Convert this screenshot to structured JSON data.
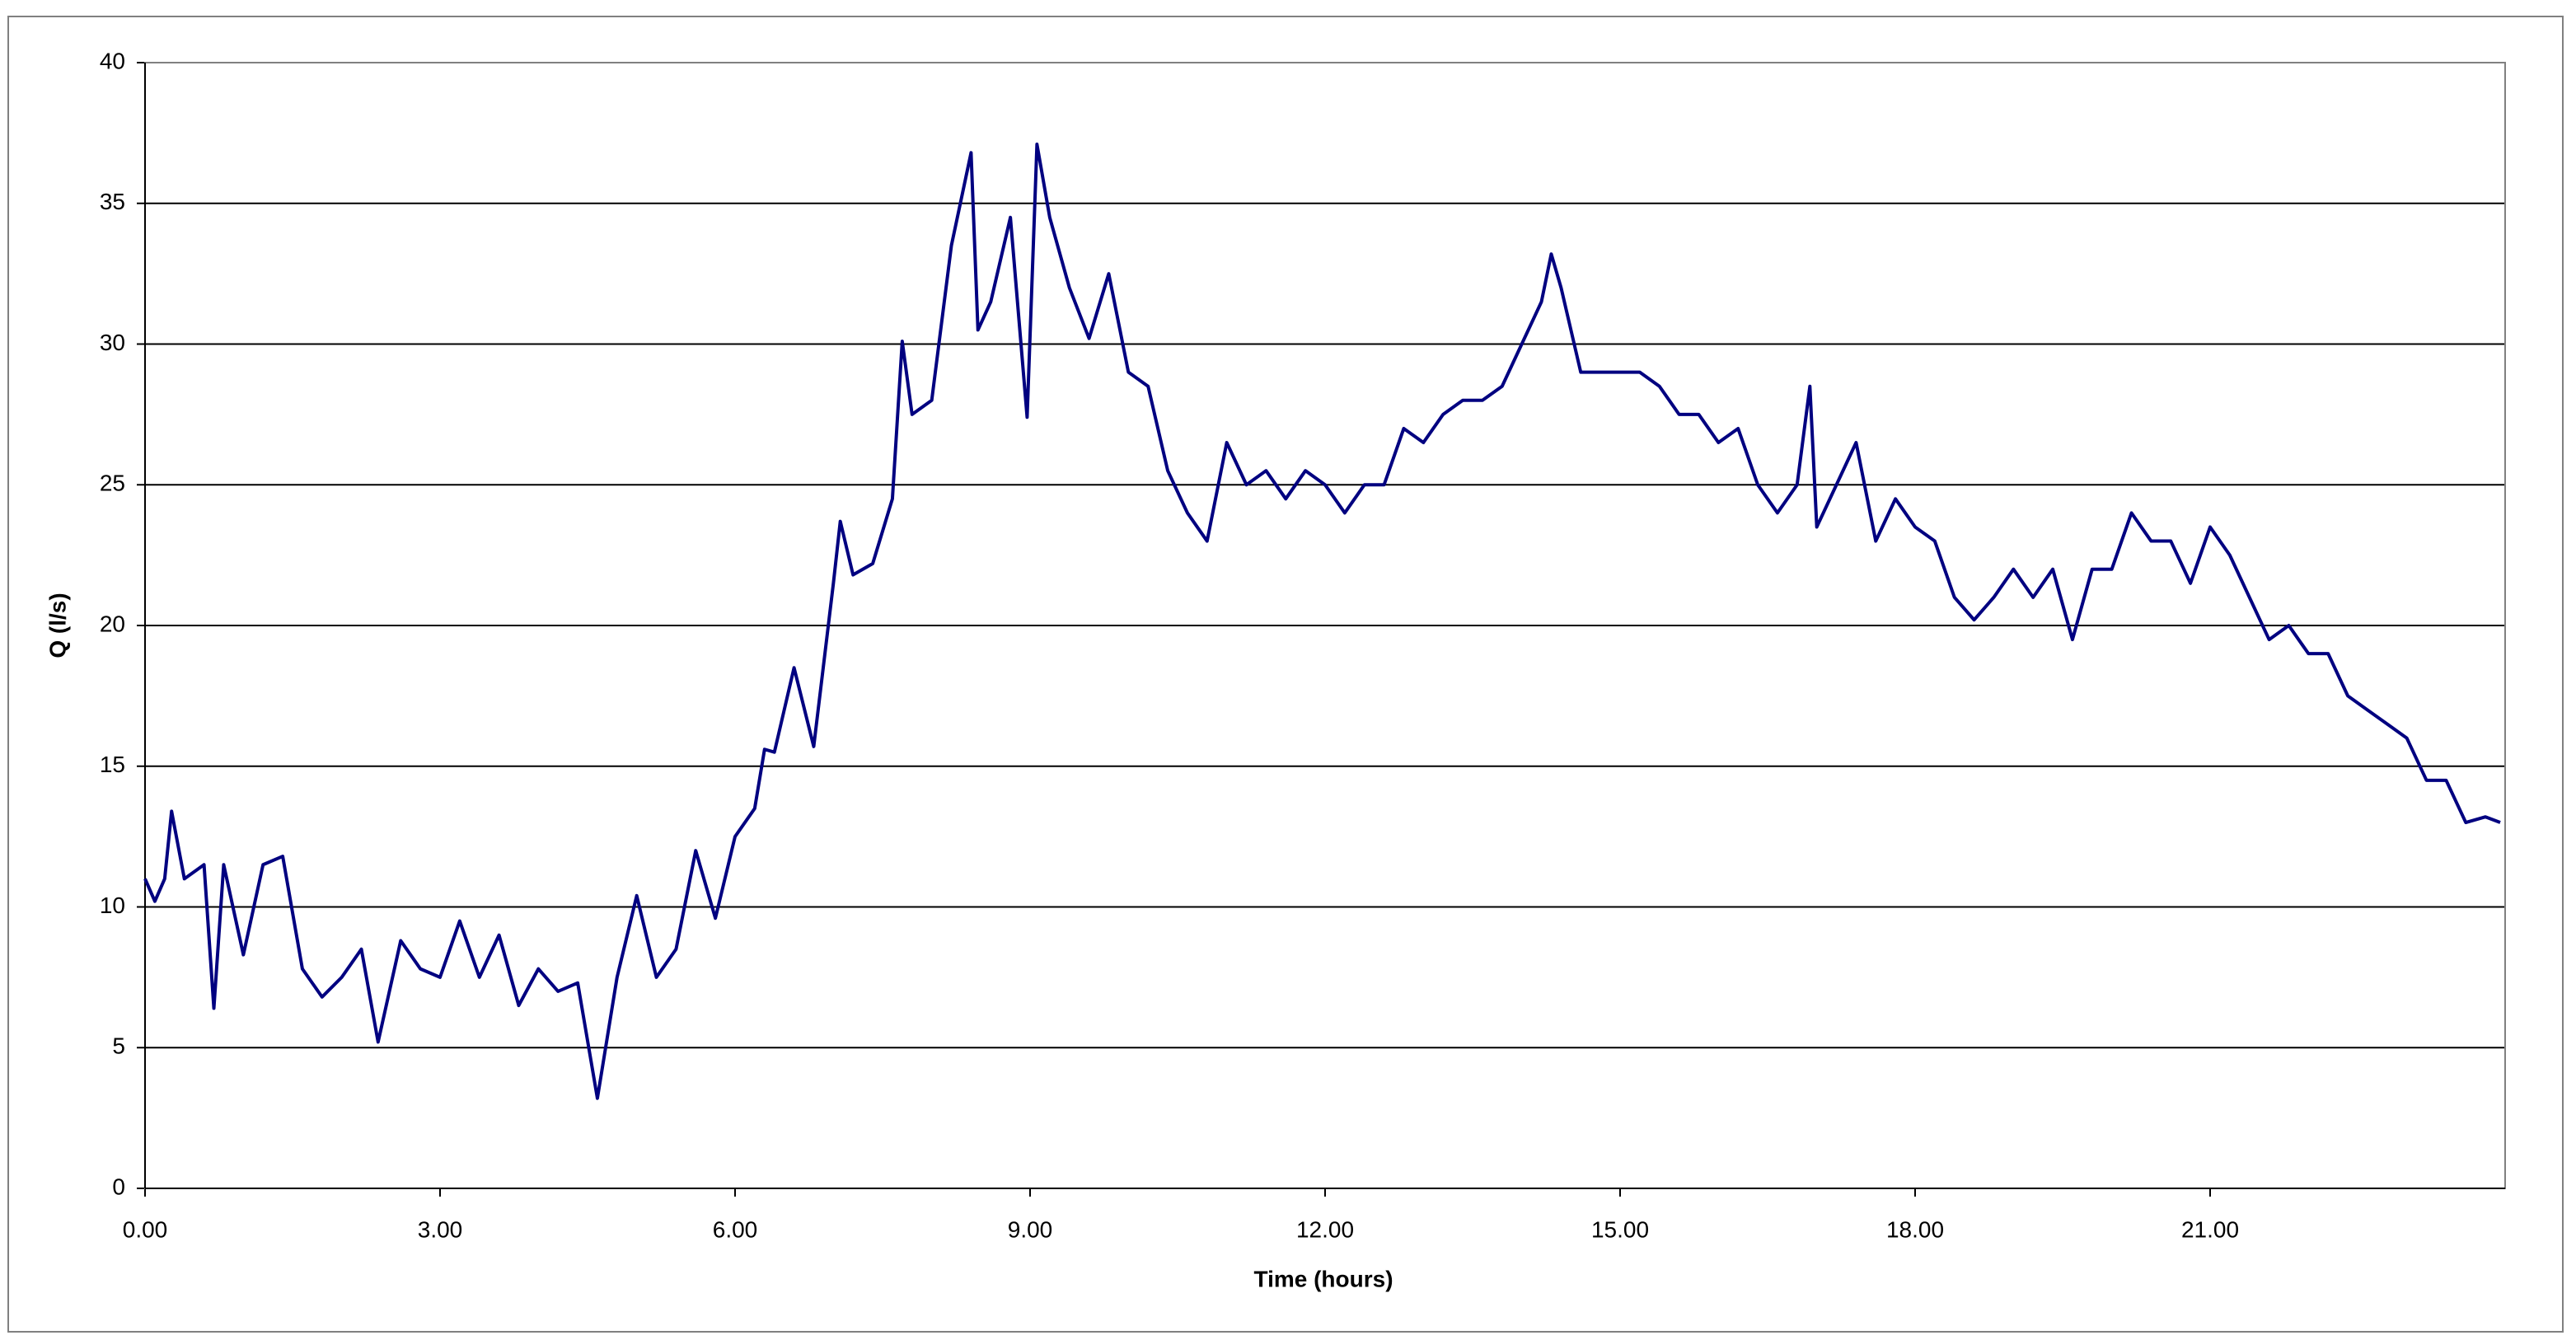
{
  "chart_data": {
    "type": "line",
    "xlabel": "Time (hours)",
    "ylabel": "Q (l/s)",
    "x": [
      0,
      0.1,
      0.2,
      0.27,
      0.4,
      0.6,
      0.7,
      0.8,
      1.0,
      1.2,
      1.4,
      1.6,
      1.8,
      2.0,
      2.2,
      2.37,
      2.6,
      2.8,
      3.0,
      3.2,
      3.4,
      3.6,
      3.8,
      4.0,
      4.2,
      4.4,
      4.6,
      4.8,
      5.0,
      5.2,
      5.4,
      5.6,
      5.8,
      6.0,
      6.2,
      6.3,
      6.4,
      6.6,
      6.8,
      7.0,
      7.07,
      7.2,
      7.4,
      7.6,
      7.7,
      7.8,
      8.0,
      8.2,
      8.4,
      8.47,
      8.6,
      8.8,
      8.97,
      9.07,
      9.2,
      9.4,
      9.6,
      9.8,
      10.0,
      10.2,
      10.4,
      10.6,
      10.8,
      11.0,
      11.2,
      11.4,
      11.6,
      11.8,
      12.0,
      12.2,
      12.4,
      12.6,
      12.8,
      13.0,
      13.2,
      13.4,
      13.6,
      13.8,
      14.0,
      14.2,
      14.3,
      14.4,
      14.6,
      14.8,
      15.0,
      15.2,
      15.4,
      15.6,
      15.8,
      16.0,
      16.2,
      16.4,
      16.6,
      16.8,
      16.93,
      17.0,
      17.2,
      17.4,
      17.6,
      17.8,
      18.0,
      18.2,
      18.4,
      18.6,
      18.8,
      19.0,
      19.2,
      19.4,
      19.6,
      19.8,
      20.0,
      20.2,
      20.4,
      20.6,
      20.8,
      21.0,
      21.2,
      21.4,
      21.6,
      21.8,
      22.0,
      22.2,
      22.4,
      22.6,
      22.8,
      23.0,
      23.2,
      23.4,
      23.6,
      23.8,
      23.95
    ],
    "series": [
      {
        "name": "Q",
        "color": "#000080",
        "values": [
          11,
          10.2,
          11,
          13.4,
          11,
          11.5,
          6.4,
          11.5,
          8.3,
          11.5,
          11.8,
          7.8,
          6.8,
          7.5,
          8.5,
          5.2,
          8.8,
          7.8,
          7.5,
          9.5,
          7.5,
          9.0,
          6.5,
          7.8,
          7.0,
          7.3,
          3.2,
          7.5,
          10.4,
          7.5,
          8.5,
          12,
          9.6,
          12.5,
          13.5,
          15.6,
          15.5,
          18.5,
          15.7,
          21.5,
          23.7,
          21.8,
          22.2,
          24.5,
          30.1,
          27.5,
          28,
          33.5,
          36.8,
          30.5,
          31.5,
          34.5,
          27.4,
          37.1,
          34.5,
          32,
          30.2,
          32.5,
          29,
          28.5,
          25.5,
          24,
          23,
          26.5,
          25,
          25.5,
          24.5,
          25.5,
          25,
          24,
          25,
          25,
          27,
          26.5,
          27.5,
          28,
          28,
          28.5,
          30,
          31.5,
          33.2,
          32,
          29,
          29,
          29,
          29,
          28.5,
          27.5,
          27.5,
          26.5,
          27,
          25,
          24,
          25,
          28.5,
          23.5,
          25,
          26.5,
          23,
          24.5,
          23.5,
          23,
          21,
          20.2,
          21,
          22,
          21,
          22,
          19.5,
          22,
          22,
          24,
          23,
          23,
          21.5,
          23.5,
          22.5,
          21,
          19.5,
          20,
          19,
          19,
          17.5,
          17,
          16.5,
          16,
          14.5,
          14.5,
          13,
          13.2,
          13
        ]
      }
    ],
    "xlim": [
      0,
      24
    ],
    "xticks": [
      {
        "value": 0,
        "label": "0.00"
      },
      {
        "value": 3,
        "label": "3.00"
      },
      {
        "value": 6,
        "label": "6.00"
      },
      {
        "value": 9,
        "label": "9.00"
      },
      {
        "value": 12,
        "label": "12.00"
      },
      {
        "value": 15,
        "label": "15.00"
      },
      {
        "value": 18,
        "label": "18.00"
      },
      {
        "value": 21,
        "label": "21.00"
      }
    ],
    "ylim": [
      0,
      40
    ],
    "yticks": [
      0,
      5,
      10,
      15,
      20,
      25,
      30,
      35,
      40
    ],
    "grid": true
  }
}
